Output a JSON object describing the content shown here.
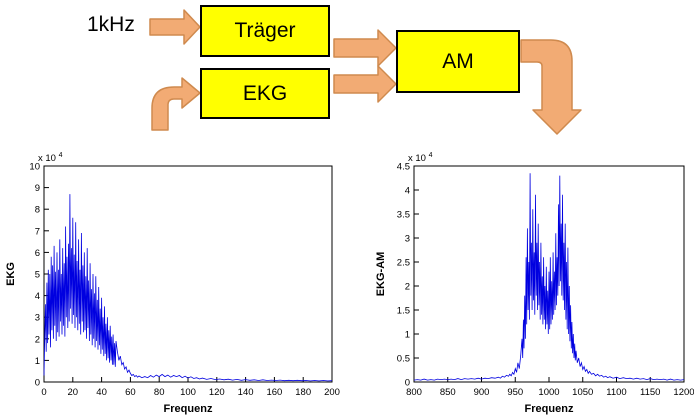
{
  "diagram": {
    "input_label": "1kHz",
    "blocks": [
      {
        "id": "traeger",
        "label": "Träger"
      },
      {
        "id": "ekg",
        "label": "EKG"
      },
      {
        "id": "am",
        "label": "AM"
      }
    ],
    "colors": {
      "block_fill": "#ffff00",
      "block_border": "#000000",
      "arrow_fill": "#f2ab74",
      "arrow_stroke": "#cf8a4e"
    }
  },
  "chart_data": [
    {
      "type": "line",
      "title": "",
      "xlabel": "Frequenz",
      "ylabel": "EKG",
      "exponent_label": "x 10",
      "exponent": "4",
      "xlim": [
        0,
        200
      ],
      "ylim": [
        0,
        10
      ],
      "xticks": [
        0,
        20,
        40,
        60,
        80,
        100,
        120,
        140,
        160,
        180,
        200
      ],
      "yticks": [
        0,
        1,
        2,
        3,
        4,
        5,
        6,
        7,
        8,
        9,
        10
      ],
      "line_color": "#0000e0",
      "grid": false,
      "legend": null,
      "points": [
        [
          0,
          0.3
        ],
        [
          0.5,
          2.0
        ],
        [
          1,
          3.6
        ],
        [
          1.5,
          1.4
        ],
        [
          2,
          4.6
        ],
        [
          2.5,
          1.8
        ],
        [
          3,
          5.2
        ],
        [
          3.5,
          2.2
        ],
        [
          4,
          5.0
        ],
        [
          4.5,
          1.6
        ],
        [
          5,
          5.8
        ],
        [
          5.5,
          2.4
        ],
        [
          6,
          5.4
        ],
        [
          6.5,
          2.0
        ],
        [
          7,
          6.3
        ],
        [
          7.5,
          2.6
        ],
        [
          8,
          5.1
        ],
        [
          8.5,
          1.9
        ],
        [
          9,
          6.0
        ],
        [
          9.5,
          2.3
        ],
        [
          10,
          5.2
        ],
        [
          10.5,
          2.1
        ],
        [
          11,
          6.6
        ],
        [
          11.5,
          2.8
        ],
        [
          12,
          5.0
        ],
        [
          12.5,
          2.2
        ],
        [
          13,
          6.2
        ],
        [
          13.5,
          2.6
        ],
        [
          14,
          5.5
        ],
        [
          14.5,
          2.1
        ],
        [
          15,
          7.2
        ],
        [
          15.5,
          3.0
        ],
        [
          16,
          5.8
        ],
        [
          16.5,
          2.5
        ],
        [
          17,
          6.4
        ],
        [
          17.5,
          2.8
        ],
        [
          18,
          8.7
        ],
        [
          18.5,
          3.4
        ],
        [
          19,
          6.2
        ],
        [
          19.5,
          2.7
        ],
        [
          20,
          7.6
        ],
        [
          20.5,
          3.1
        ],
        [
          21,
          5.9
        ],
        [
          21.5,
          2.5
        ],
        [
          22,
          7.4
        ],
        [
          22.5,
          3.0
        ],
        [
          23,
          5.6
        ],
        [
          23.5,
          2.4
        ],
        [
          24,
          6.6
        ],
        [
          24.5,
          2.7
        ],
        [
          25,
          5.2
        ],
        [
          25.5,
          2.2
        ],
        [
          26,
          6.9
        ],
        [
          26.5,
          2.8
        ],
        [
          27,
          5.4
        ],
        [
          27.5,
          2.3
        ],
        [
          28,
          6.0
        ],
        [
          28.5,
          2.4
        ],
        [
          29,
          4.9
        ],
        [
          29.5,
          2.0
        ],
        [
          30,
          6.2
        ],
        [
          30.5,
          2.5
        ],
        [
          31,
          4.7
        ],
        [
          31.5,
          1.9
        ],
        [
          32,
          5.5
        ],
        [
          32.5,
          2.2
        ],
        [
          33,
          4.3
        ],
        [
          33.5,
          1.7
        ],
        [
          34,
          5.0
        ],
        [
          34.5,
          2.0
        ],
        [
          35,
          4.1
        ],
        [
          35.5,
          1.6
        ],
        [
          36,
          4.9
        ],
        [
          36.5,
          1.9
        ],
        [
          37,
          3.8
        ],
        [
          37.5,
          1.5
        ],
        [
          38,
          4.4
        ],
        [
          38.5,
          1.7
        ],
        [
          39,
          3.4
        ],
        [
          39.5,
          1.3
        ],
        [
          40,
          3.9
        ],
        [
          40.5,
          1.5
        ],
        [
          41,
          3.0
        ],
        [
          41.5,
          1.2
        ],
        [
          42,
          3.5
        ],
        [
          42.5,
          1.3
        ],
        [
          43,
          2.7
        ],
        [
          43.5,
          1.0
        ],
        [
          44,
          3.0
        ],
        [
          44.5,
          1.1
        ],
        [
          45,
          2.4
        ],
        [
          45.5,
          0.9
        ],
        [
          46,
          2.6
        ],
        [
          46.5,
          1.0
        ],
        [
          47,
          2.1
        ],
        [
          47.5,
          0.8
        ],
        [
          48,
          2.2
        ],
        [
          48.5,
          0.8
        ],
        [
          49,
          1.8
        ],
        [
          49.5,
          0.7
        ],
        [
          50,
          1.9
        ],
        [
          51,
          1.4
        ],
        [
          52,
          1.0
        ],
        [
          53,
          1.2
        ],
        [
          54,
          0.8
        ],
        [
          55,
          0.9
        ],
        [
          56,
          0.6
        ],
        [
          57,
          0.7
        ],
        [
          58,
          0.45
        ],
        [
          59,
          0.55
        ],
        [
          60,
          0.4
        ],
        [
          61,
          0.3
        ],
        [
          62,
          0.35
        ],
        [
          63,
          0.25
        ],
        [
          64,
          0.3
        ],
        [
          65,
          0.22
        ],
        [
          66,
          0.28
        ],
        [
          68,
          0.2
        ],
        [
          70,
          0.25
        ],
        [
          72,
          0.2
        ],
        [
          74,
          0.3
        ],
        [
          76,
          0.22
        ],
        [
          78,
          0.32
        ],
        [
          80,
          0.25
        ],
        [
          82,
          0.35
        ],
        [
          84,
          0.25
        ],
        [
          86,
          0.32
        ],
        [
          88,
          0.22
        ],
        [
          90,
          0.3
        ],
        [
          92,
          0.25
        ],
        [
          94,
          0.3
        ],
        [
          96,
          0.2
        ],
        [
          98,
          0.27
        ],
        [
          100,
          0.18
        ],
        [
          102,
          0.24
        ],
        [
          104,
          0.16
        ],
        [
          106,
          0.2
        ],
        [
          108,
          0.14
        ],
        [
          110,
          0.18
        ],
        [
          113,
          0.12
        ],
        [
          116,
          0.16
        ],
        [
          119,
          0.11
        ],
        [
          122,
          0.14
        ],
        [
          125,
          0.1
        ],
        [
          128,
          0.13
        ],
        [
          131,
          0.09
        ],
        [
          134,
          0.12
        ],
        [
          137,
          0.08
        ],
        [
          140,
          0.11
        ],
        [
          143,
          0.08
        ],
        [
          146,
          0.1
        ],
        [
          149,
          0.07
        ],
        [
          152,
          0.1
        ],
        [
          155,
          0.07
        ],
        [
          158,
          0.09
        ],
        [
          161,
          0.07
        ],
        [
          164,
          0.09
        ],
        [
          167,
          0.06
        ],
        [
          170,
          0.08
        ],
        [
          173,
          0.06
        ],
        [
          176,
          0.08
        ],
        [
          179,
          0.06
        ],
        [
          182,
          0.07
        ],
        [
          185,
          0.05
        ],
        [
          188,
          0.07
        ],
        [
          191,
          0.05
        ],
        [
          194,
          0.07
        ],
        [
          197,
          0.05
        ],
        [
          200,
          0.06
        ]
      ]
    },
    {
      "type": "line",
      "title": "",
      "xlabel": "Frequenz",
      "ylabel": "EKG-AM",
      "exponent_label": "x 10",
      "exponent": "4",
      "xlim": [
        800,
        1200
      ],
      "ylim": [
        0,
        4.5
      ],
      "xticks": [
        800,
        850,
        900,
        950,
        1000,
        1050,
        1100,
        1150,
        1200
      ],
      "yticks": [
        0,
        0.5,
        1,
        1.5,
        2,
        2.5,
        3,
        3.5,
        4,
        4.5
      ],
      "line_color": "#0000e0",
      "grid": false,
      "legend": null,
      "points": [
        [
          800,
          0.04
        ],
        [
          805,
          0.05
        ],
        [
          810,
          0.04
        ],
        [
          815,
          0.06
        ],
        [
          820,
          0.04
        ],
        [
          825,
          0.05
        ],
        [
          830,
          0.04
        ],
        [
          835,
          0.06
        ],
        [
          840,
          0.05
        ],
        [
          845,
          0.06
        ],
        [
          850,
          0.05
        ],
        [
          855,
          0.06
        ],
        [
          860,
          0.05
        ],
        [
          865,
          0.07
        ],
        [
          870,
          0.05
        ],
        [
          875,
          0.07
        ],
        [
          880,
          0.06
        ],
        [
          885,
          0.07
        ],
        [
          890,
          0.06
        ],
        [
          895,
          0.08
        ],
        [
          900,
          0.06
        ],
        [
          905,
          0.08
        ],
        [
          910,
          0.07
        ],
        [
          915,
          0.09
        ],
        [
          920,
          0.08
        ],
        [
          925,
          0.1
        ],
        [
          928,
          0.08
        ],
        [
          931,
          0.12
        ],
        [
          934,
          0.1
        ],
        [
          937,
          0.14
        ],
        [
          940,
          0.12
        ],
        [
          942,
          0.16
        ],
        [
          944,
          0.13
        ],
        [
          946,
          0.2
        ],
        [
          948,
          0.16
        ],
        [
          950,
          0.28
        ],
        [
          952,
          0.2
        ],
        [
          954,
          0.4
        ],
        [
          956,
          0.28
        ],
        [
          958,
          0.55
        ],
        [
          960,
          0.9
        ],
        [
          961,
          0.5
        ],
        [
          962,
          1.3
        ],
        [
          963,
          0.7
        ],
        [
          964,
          1.8
        ],
        [
          965,
          0.9
        ],
        [
          966,
          2.6
        ],
        [
          967,
          1.2
        ],
        [
          968,
          3.2
        ],
        [
          969,
          1.5
        ],
        [
          970,
          2.5
        ],
        [
          971,
          1.3
        ],
        [
          972,
          4.35
        ],
        [
          973,
          1.8
        ],
        [
          974,
          2.9
        ],
        [
          975,
          1.5
        ],
        [
          976,
          3.6
        ],
        [
          977,
          1.7
        ],
        [
          978,
          2.7
        ],
        [
          979,
          1.4
        ],
        [
          980,
          3.9
        ],
        [
          981,
          1.8
        ],
        [
          982,
          2.9
        ],
        [
          983,
          1.5
        ],
        [
          984,
          3.3
        ],
        [
          985,
          1.6
        ],
        [
          986,
          2.5
        ],
        [
          987,
          1.3
        ],
        [
          988,
          2.9
        ],
        [
          989,
          1.4
        ],
        [
          990,
          2.2
        ],
        [
          991,
          1.2
        ],
        [
          992,
          2.6
        ],
        [
          993,
          1.3
        ],
        [
          994,
          2.0
        ],
        [
          995,
          1.1
        ],
        [
          996,
          2.4
        ],
        [
          997,
          1.2
        ],
        [
          998,
          1.9
        ],
        [
          999,
          1.0
        ],
        [
          1000,
          2.3
        ],
        [
          1001,
          1.1
        ],
        [
          1002,
          2.6
        ],
        [
          1003,
          1.2
        ],
        [
          1004,
          2.1
        ],
        [
          1005,
          1.3
        ],
        [
          1006,
          2.7
        ],
        [
          1007,
          1.4
        ],
        [
          1008,
          2.3
        ],
        [
          1009,
          1.5
        ],
        [
          1010,
          3.1
        ],
        [
          1011,
          1.6
        ],
        [
          1012,
          2.6
        ],
        [
          1013,
          1.8
        ],
        [
          1014,
          3.7
        ],
        [
          1015,
          2.0
        ],
        [
          1016,
          4.3
        ],
        [
          1017,
          2.1
        ],
        [
          1018,
          3.3
        ],
        [
          1019,
          1.8
        ],
        [
          1020,
          3.9
        ],
        [
          1021,
          1.7
        ],
        [
          1022,
          2.9
        ],
        [
          1023,
          1.5
        ],
        [
          1024,
          3.3
        ],
        [
          1025,
          1.3
        ],
        [
          1026,
          2.5
        ],
        [
          1027,
          1.1
        ],
        [
          1028,
          2.8
        ],
        [
          1029,
          1.0
        ],
        [
          1030,
          2.0
        ],
        [
          1031,
          0.85
        ],
        [
          1032,
          1.6
        ],
        [
          1033,
          0.7
        ],
        [
          1034,
          1.25
        ],
        [
          1035,
          0.6
        ],
        [
          1036,
          1.0
        ],
        [
          1037,
          0.5
        ],
        [
          1038,
          0.8
        ],
        [
          1039,
          0.45
        ],
        [
          1040,
          0.65
        ],
        [
          1042,
          0.4
        ],
        [
          1044,
          0.5
        ],
        [
          1046,
          0.32
        ],
        [
          1048,
          0.4
        ],
        [
          1050,
          0.26
        ],
        [
          1052,
          0.32
        ],
        [
          1054,
          0.22
        ],
        [
          1056,
          0.26
        ],
        [
          1058,
          0.18
        ],
        [
          1060,
          0.22
        ],
        [
          1063,
          0.16
        ],
        [
          1066,
          0.18
        ],
        [
          1069,
          0.13
        ],
        [
          1072,
          0.16
        ],
        [
          1075,
          0.12
        ],
        [
          1078,
          0.14
        ],
        [
          1081,
          0.1
        ],
        [
          1084,
          0.12
        ],
        [
          1087,
          0.09
        ],
        [
          1090,
          0.11
        ],
        [
          1095,
          0.08
        ],
        [
          1100,
          0.1
        ],
        [
          1105,
          0.07
        ],
        [
          1110,
          0.09
        ],
        [
          1115,
          0.07
        ],
        [
          1120,
          0.08
        ],
        [
          1125,
          0.06
        ],
        [
          1130,
          0.08
        ],
        [
          1135,
          0.06
        ],
        [
          1140,
          0.07
        ],
        [
          1145,
          0.05
        ],
        [
          1150,
          0.07
        ],
        [
          1155,
          0.05
        ],
        [
          1160,
          0.06
        ],
        [
          1165,
          0.05
        ],
        [
          1170,
          0.06
        ],
        [
          1175,
          0.04
        ],
        [
          1180,
          0.06
        ],
        [
          1185,
          0.04
        ],
        [
          1190,
          0.05
        ],
        [
          1195,
          0.04
        ],
        [
          1200,
          0.05
        ]
      ]
    }
  ]
}
